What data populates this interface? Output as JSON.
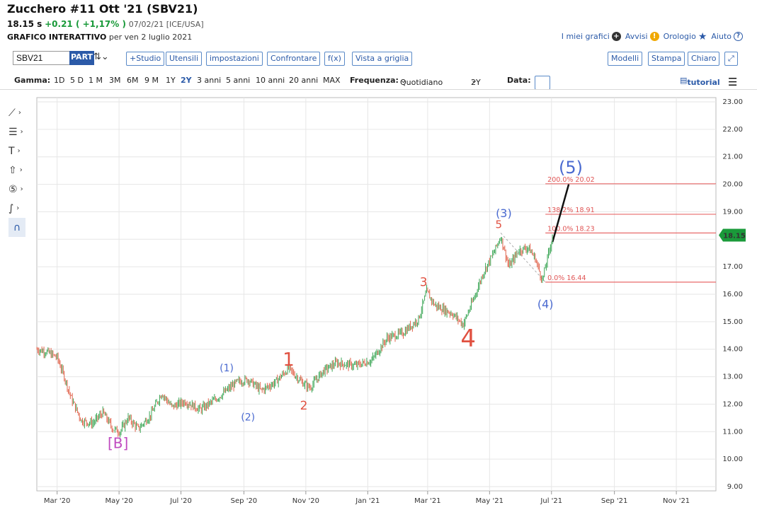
{
  "header": {
    "title": "Zucchero #11 Ott '21 (SBV21)",
    "last": "18.15 s",
    "change": "+0.21 ( +1,17% )",
    "date_exchange": "07/02/21 [ICE/USA]",
    "subtitle_bold": "GRAFICO INTERATTIVO",
    "subtitle_rest": "per ven 2 luglio 2021"
  },
  "top_links": {
    "my_charts": "I miei grafici",
    "alerts": "Avvisi",
    "clock": "Orologio",
    "help": "Aiuto"
  },
  "toolbar": {
    "symbol_value": "SBV21",
    "part_label": "PART",
    "studio": "+Studio",
    "utensili": "Utensili",
    "impostazioni": "impostazioni",
    "confrontare": "Confrontare",
    "fx": "f(x)",
    "vista": "Vista a griglia",
    "modelli": "Modelli",
    "stampa": "Stampa",
    "chiaro": "Chiaro"
  },
  "range_bar": {
    "gamma_label": "Gamma:",
    "ranges": [
      "1D",
      "5 D",
      "1 M",
      "3M",
      "6M",
      "9 M",
      "1Y",
      "2Y",
      "3 anni",
      "5 anni",
      "10 anni",
      "20 anni",
      "MAX"
    ],
    "selected": "2Y",
    "freq_label": "Frequenza:",
    "freq_value": "Quotidiano",
    "period_value": "2Y",
    "date_label": "Data:",
    "tutorial": "tutorial"
  },
  "chart_data": {
    "type": "candlestick",
    "x_ticks": [
      "Mar '20",
      "May '20",
      "Jul '20",
      "Sep '20",
      "Nov '20",
      "Jan '21",
      "Mar '21",
      "May '21",
      "Jul '21",
      "Sep '21",
      "Nov '21"
    ],
    "y_ticks": [
      "23.00",
      "22.00",
      "21.00",
      "20.00",
      "19.00",
      "18.00",
      "17.00",
      "16.00",
      "15.00",
      "14.00",
      "13.00",
      "12.00",
      "11.00",
      "10.00",
      "9.00"
    ],
    "ylim": [
      9,
      23
    ],
    "last_price_label": "18.15",
    "price_path": [
      {
        "d": "2020-02-10",
        "p": 14.0
      },
      {
        "d": "2020-02-20",
        "p": 13.9
      },
      {
        "d": "2020-03-01",
        "p": 13.7
      },
      {
        "d": "2020-03-08",
        "p": 13.0
      },
      {
        "d": "2020-03-15",
        "p": 12.2
      },
      {
        "d": "2020-03-25",
        "p": 11.4
      },
      {
        "d": "2020-04-05",
        "p": 11.3
      },
      {
        "d": "2020-04-15",
        "p": 11.7
      },
      {
        "d": "2020-04-25",
        "p": 11.1
      },
      {
        "d": "2020-05-02",
        "p": 11.0
      },
      {
        "d": "2020-05-10",
        "p": 11.5
      },
      {
        "d": "2020-05-20",
        "p": 11.1
      },
      {
        "d": "2020-06-01",
        "p": 11.6
      },
      {
        "d": "2020-06-12",
        "p": 12.4
      },
      {
        "d": "2020-06-22",
        "p": 11.9
      },
      {
        "d": "2020-07-05",
        "p": 12.1
      },
      {
        "d": "2020-07-20",
        "p": 11.8
      },
      {
        "d": "2020-08-05",
        "p": 12.2
      },
      {
        "d": "2020-08-25",
        "p": 12.8
      },
      {
        "d": "2020-09-05",
        "p": 12.9
      },
      {
        "d": "2020-09-18",
        "p": 12.5
      },
      {
        "d": "2020-10-02",
        "p": 12.8
      },
      {
        "d": "2020-10-15",
        "p": 13.3
      },
      {
        "d": "2020-10-28",
        "p": 12.8
      },
      {
        "d": "2020-11-05",
        "p": 12.6
      },
      {
        "d": "2020-11-18",
        "p": 13.2
      },
      {
        "d": "2020-12-01",
        "p": 13.5
      },
      {
        "d": "2020-12-20",
        "p": 13.4
      },
      {
        "d": "2021-01-05",
        "p": 13.6
      },
      {
        "d": "2021-01-20",
        "p": 14.4
      },
      {
        "d": "2021-02-05",
        "p": 14.6
      },
      {
        "d": "2021-02-20",
        "p": 15.1
      },
      {
        "d": "2021-02-28",
        "p": 16.1
      },
      {
        "d": "2021-03-08",
        "p": 15.6
      },
      {
        "d": "2021-03-25",
        "p": 15.3
      },
      {
        "d": "2021-04-05",
        "p": 14.9
      },
      {
        "d": "2021-04-15",
        "p": 15.8
      },
      {
        "d": "2021-04-25",
        "p": 16.8
      },
      {
        "d": "2021-05-05",
        "p": 17.5
      },
      {
        "d": "2021-05-12",
        "p": 18.1
      },
      {
        "d": "2021-05-20",
        "p": 17.0
      },
      {
        "d": "2021-05-30",
        "p": 17.6
      },
      {
        "d": "2021-06-08",
        "p": 17.7
      },
      {
        "d": "2021-06-15",
        "p": 17.3
      },
      {
        "d": "2021-06-22",
        "p": 16.5
      },
      {
        "d": "2021-07-02",
        "p": 18.1
      }
    ],
    "wave_labels": [
      {
        "text": "[B]",
        "d": "2020-04-30",
        "p": 10.4,
        "color": "#c04ac0",
        "size": 20
      },
      {
        "text": "(1)",
        "d": "2020-08-15",
        "p": 13.2,
        "color": "#4a6ad0",
        "size": 14
      },
      {
        "text": "(2)",
        "d": "2020-09-05",
        "p": 11.4,
        "color": "#4a6ad0",
        "size": 14
      },
      {
        "text": "1",
        "d": "2020-10-15",
        "p": 13.4,
        "color": "#e05040",
        "size": 26
      },
      {
        "text": "2",
        "d": "2020-10-30",
        "p": 11.8,
        "color": "#e05040",
        "size": 17
      },
      {
        "text": "3",
        "d": "2021-02-25",
        "p": 16.3,
        "color": "#e05040",
        "size": 17
      },
      {
        "text": "4",
        "d": "2021-04-10",
        "p": 14.1,
        "color": "#e05040",
        "size": 34
      },
      {
        "text": "5",
        "d": "2021-05-10",
        "p": 18.4,
        "color": "#e05040",
        "size": 15
      },
      {
        "text": "(3)",
        "d": "2021-05-15",
        "p": 18.8,
        "color": "#4a6ad0",
        "size": 16
      },
      {
        "text": "(4)",
        "d": "2021-06-25",
        "p": 15.5,
        "color": "#4a6ad0",
        "size": 16
      },
      {
        "text": "(5)",
        "d": "2021-07-20",
        "p": 20.4,
        "color": "#4a6ad0",
        "size": 24
      }
    ],
    "fib_levels": [
      {
        "label": "200.0% 20.02",
        "value": 20.02
      },
      {
        "label": "138.2% 18.91",
        "value": 18.91
      },
      {
        "label": "100.0% 18.23",
        "value": 18.23
      },
      {
        "label": "0.0% 16.44",
        "value": 16.44
      }
    ],
    "projection_line": {
      "from": {
        "d": "2021-07-02",
        "p": 17.9
      },
      "to": {
        "d": "2021-07-18",
        "p": 20.0
      }
    }
  }
}
